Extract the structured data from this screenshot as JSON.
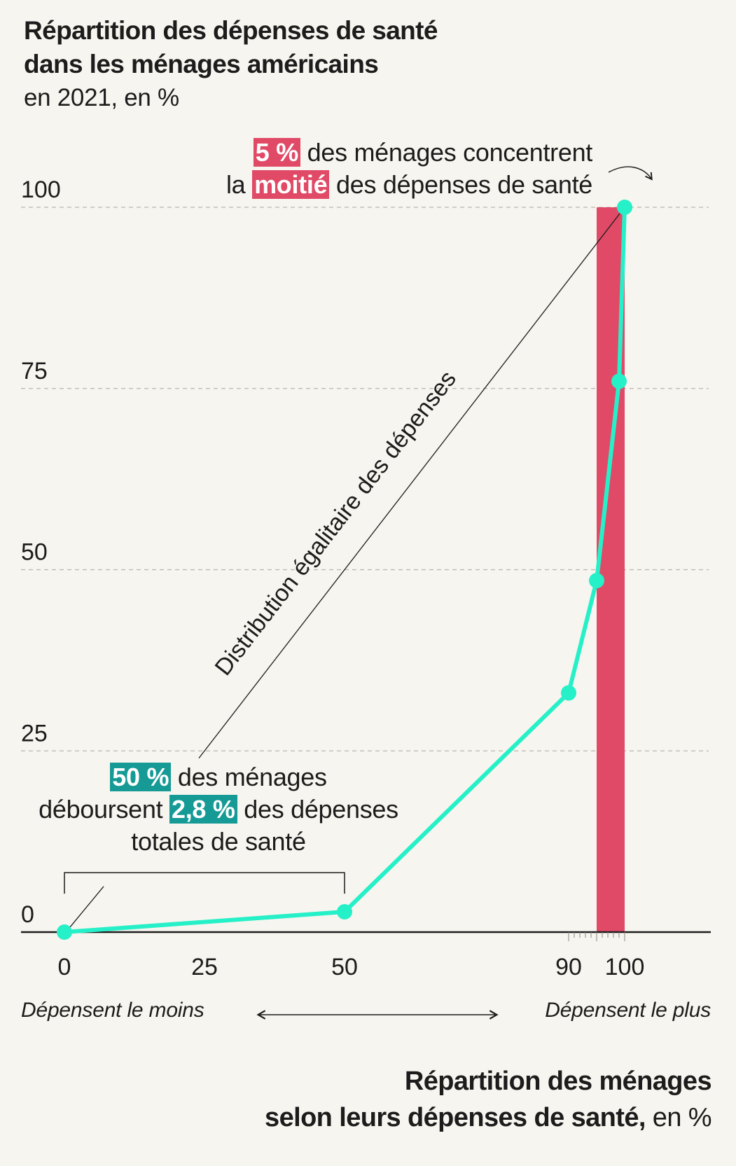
{
  "title": "Répartition des dépenses de santé\ndans les ménages américains",
  "subtitle": "en 2021, en %",
  "annotations": {
    "top": {
      "hl1": "5 %",
      "text1": " des ménages concentrent",
      "pre2": "la ",
      "hl2": "moitié",
      "text2": " des dépenses de santé"
    },
    "bottom": {
      "hl1": "50 %",
      "text1": " des ménages",
      "pre2": "déboursent ",
      "hl2": "2,8 %",
      "text2": " des dépenses",
      "line3": "totales de santé"
    },
    "diagonal_label": "Distribution égalitaire des dépenses"
  },
  "x_caption_left": "Dépensent le moins",
  "x_caption_right": "Dépensent le plus",
  "x_axis_title_bold_1": "Répartition des ménages",
  "x_axis_title_bold_2": "selon leurs dépenses de santé,",
  "x_axis_title_unit": " en %",
  "colors": {
    "background": "#f7f5ef",
    "curve": "#26f0c8",
    "highlight_band": "#e04a67",
    "teal_label": "#169a95"
  },
  "chart_data": {
    "type": "line",
    "title": "Répartition des dépenses de santé dans les ménages américains",
    "subtitle": "en 2021, en %",
    "xlabel": "Répartition des ménages selon leurs dépenses de santé, en %",
    "ylabel": "",
    "xlim": [
      0,
      100
    ],
    "ylim": [
      0,
      100
    ],
    "x_ticks": [
      0,
      25,
      50,
      90,
      100
    ],
    "y_ticks": [
      0,
      25,
      50,
      75,
      100
    ],
    "minor_x_ticks": [
      90,
      91,
      92,
      93,
      94,
      95,
      96,
      97,
      98,
      99,
      100
    ],
    "grid": "horizontal dashed",
    "series": [
      {
        "x": [
          0,
          50,
          90,
          95,
          99,
          100
        ],
        "y": [
          0,
          2.8,
          33,
          48.5,
          76,
          100
        ]
      }
    ],
    "reference_line": {
      "label": "Distribution égalitaire des dépenses",
      "x": [
        0,
        100
      ],
      "y": [
        0,
        100
      ]
    },
    "highlight_band": {
      "x_from": 95,
      "x_to": 100
    },
    "bracket": {
      "x_from": 0,
      "x_to": 50
    }
  }
}
